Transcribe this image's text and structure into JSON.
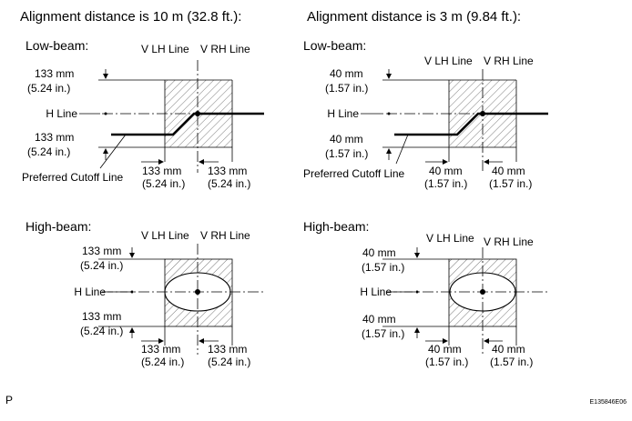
{
  "left": {
    "heading": "Alignment distance is 10 m (32.8 ft.):",
    "low": {
      "title": "Low-beam:",
      "vlh": "V LH Line",
      "vrh": "V RH Line",
      "top_mm": "133 mm",
      "top_in": "(5.24 in.)",
      "hline": "H Line",
      "bot_mm": "133 mm",
      "bot_in": "(5.24 in.)",
      "preferred": "Preferred Cutoff Line",
      "h1_mm": "133 mm",
      "h1_in": "(5.24 in.)",
      "h2_mm": "133 mm",
      "h2_in": "(5.24 in.)"
    },
    "high": {
      "title": "High-beam:",
      "vlh": "V LH Line",
      "vrh": "V RH Line",
      "top_mm": "133 mm",
      "top_in": "(5.24 in.)",
      "hline": "H Line",
      "bot_mm": "133 mm",
      "bot_in": "(5.24 in.)",
      "h1_mm": "133 mm",
      "h1_in": "(5.24 in.)",
      "h2_mm": "133 mm",
      "h2_in": "(5.24 in.)"
    }
  },
  "right": {
    "heading": "Alignment distance is 3 m (9.84 ft.):",
    "low": {
      "title": "Low-beam:",
      "vlh": "V LH Line",
      "vrh": "V RH Line",
      "top_mm": "40 mm",
      "top_in": "(1.57 in.)",
      "hline": "H Line",
      "bot_mm": "40 mm",
      "bot_in": "(1.57 in.)",
      "preferred": "Preferred Cutoff Line",
      "h1_mm": "40 mm",
      "h1_in": "(1.57 in.)",
      "h2_mm": "40 mm",
      "h2_in": "(1.57 in.)"
    },
    "high": {
      "title": "High-beam:",
      "vlh": "V LH Line",
      "vrh": "V RH Line",
      "top_mm": "40 mm",
      "top_in": "(1.57 in.)",
      "hline": "H Line",
      "bot_mm": "40 mm",
      "bot_in": "(1.57 in.)",
      "h1_mm": "40 mm",
      "h1_in": "(1.57 in.)",
      "h2_mm": "40 mm",
      "h2_in": "(1.57 in.)"
    }
  },
  "footer": {
    "left_mark": "P",
    "code": "E135846E06"
  }
}
